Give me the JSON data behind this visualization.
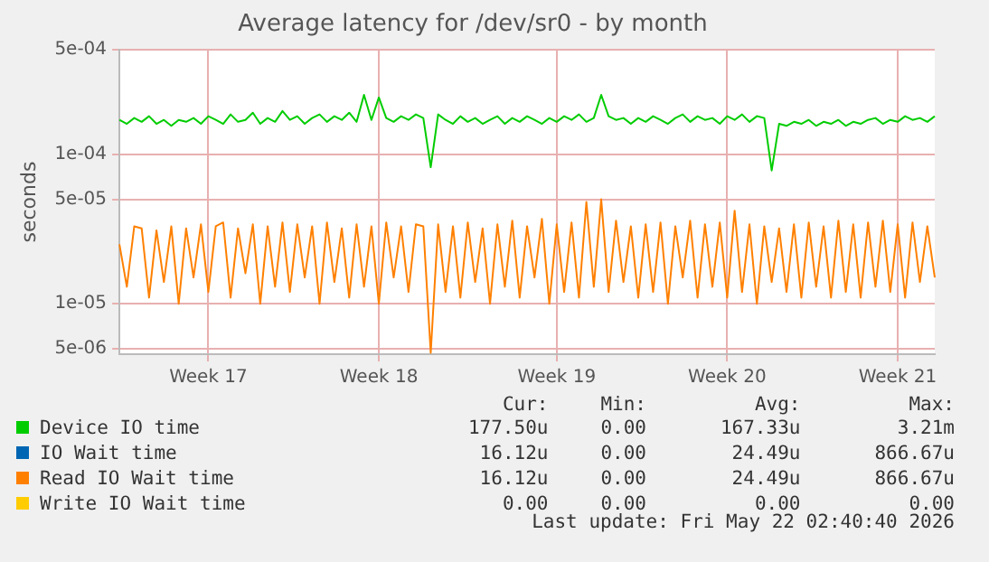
{
  "chart_data": {
    "type": "line",
    "title": "Average latency for /dev/sr0 - by month",
    "ylabel": "seconds",
    "log": "y",
    "grid": true,
    "legend": "bottom",
    "marker": "none",
    "line_style": "solid",
    "categories": [
      null,
      null,
      null,
      null,
      null,
      null,
      null,
      null,
      null,
      null,
      null,
      null,
      "Week 17",
      null,
      null,
      null,
      null,
      null,
      null,
      null,
      null,
      null,
      null,
      null,
      null,
      null,
      null,
      null,
      null,
      null,
      null,
      null,
      null,
      null,
      null,
      "Week 18",
      null,
      null,
      null,
      null,
      null,
      null,
      null,
      null,
      null,
      null,
      null,
      null,
      null,
      null,
      null,
      null,
      null,
      null,
      null,
      null,
      null,
      null,
      null,
      "Week 19",
      null,
      null,
      null,
      null,
      null,
      null,
      null,
      null,
      null,
      null,
      null,
      null,
      null,
      null,
      null,
      null,
      null,
      null,
      null,
      null,
      null,
      null,
      "Week 20",
      null,
      null,
      null,
      null,
      null,
      null,
      null,
      null,
      null,
      null,
      null,
      null,
      null,
      null,
      null,
      null,
      null,
      null,
      null,
      null,
      null,
      null,
      "Week 21",
      null,
      null,
      null,
      null,
      null
    ],
    "ylim": [
      4.6e-06,
      0.0005
    ],
    "yticks": [
      {
        "value": 5e-06,
        "label": "5e-06"
      },
      {
        "value": 1e-05,
        "label": "1e-05"
      },
      {
        "value": 5e-05,
        "label": "5e-05"
      },
      {
        "value": 0.0001,
        "label": "1e-04"
      },
      {
        "value": 0.0005,
        "label": "5e-04"
      }
    ],
    "series": [
      {
        "name": "Device IO time",
        "color": "#00cc00",
        "values": [
          0.00017,
          0.00016,
          0.000175,
          0.000165,
          0.00018,
          0.00016,
          0.00017,
          0.000155,
          0.00017,
          0.000165,
          0.000175,
          0.00016,
          0.00018,
          0.00017,
          0.00016,
          0.000185,
          0.000165,
          0.00017,
          0.00019,
          0.00016,
          0.000175,
          0.000165,
          0.000195,
          0.00017,
          0.00018,
          0.00016,
          0.000175,
          0.000185,
          0.000165,
          0.00018,
          0.00017,
          0.00019,
          0.000165,
          0.00025,
          0.00017,
          0.00024,
          0.000175,
          0.000165,
          0.00018,
          0.00017,
          0.000185,
          0.000175,
          8.2e-05,
          0.000185,
          0.00017,
          0.00016,
          0.00018,
          0.000165,
          0.000175,
          0.00016,
          0.00017,
          0.00018,
          0.00016,
          0.000175,
          0.000165,
          0.00018,
          0.00017,
          0.00016,
          0.000175,
          0.000165,
          0.00018,
          0.00017,
          0.000185,
          0.000165,
          0.000175,
          0.00025,
          0.00018,
          0.00017,
          0.000175,
          0.00016,
          0.000175,
          0.000165,
          0.00018,
          0.00017,
          0.00016,
          0.000175,
          0.000185,
          0.000165,
          0.00018,
          0.00017,
          0.000175,
          0.00016,
          0.00018,
          0.00017,
          0.000185,
          0.000165,
          0.00018,
          0.000175,
          7.8e-05,
          0.00016,
          0.000155,
          0.000165,
          0.00016,
          0.00017,
          0.000155,
          0.000165,
          0.00016,
          0.00017,
          0.000155,
          0.000165,
          0.00016,
          0.00017,
          0.000175,
          0.00016,
          0.00017,
          0.000165,
          0.00018,
          0.00017,
          0.000175,
          0.000165,
          0.00018
        ]
      },
      {
        "name": "IO Wait time",
        "color": "#0066b3",
        "values": [
          null,
          null,
          null,
          null,
          null,
          null,
          null,
          null,
          null,
          null,
          null,
          null,
          null,
          null,
          null,
          null,
          null,
          null,
          null,
          null,
          null,
          null,
          null,
          null,
          null,
          null,
          null,
          null,
          null,
          null,
          null,
          null,
          null,
          null,
          null,
          null,
          null,
          null,
          null,
          null,
          null,
          null,
          null,
          null,
          null,
          null,
          null,
          null,
          null,
          null,
          null,
          null,
          null,
          null,
          null,
          null,
          null,
          null,
          null,
          null,
          null,
          null,
          null,
          null,
          null,
          null,
          null,
          null,
          null,
          null,
          null,
          null,
          null,
          null,
          null,
          null,
          null,
          null,
          null,
          null,
          null,
          null,
          null,
          null,
          null,
          null,
          null,
          null,
          null,
          null,
          null,
          null,
          null,
          null,
          null,
          null,
          null,
          null,
          null,
          null,
          null,
          null,
          null,
          null,
          null,
          null,
          null,
          null,
          null,
          null,
          null
        ]
      },
      {
        "name": "Read IO Wait time",
        "color": "#ff8000",
        "values": [
          2.5e-05,
          1.3e-05,
          3.3e-05,
          3.2e-05,
          1.1e-05,
          3.1e-05,
          1.4e-05,
          3.3e-05,
          1e-05,
          3.2e-05,
          1.5e-05,
          3.4e-05,
          1.2e-05,
          3.3e-05,
          3.5e-05,
          1.1e-05,
          3.2e-05,
          1.6e-05,
          3.4e-05,
          1e-05,
          3.3e-05,
          1.3e-05,
          3.5e-05,
          1.2e-05,
          3.4e-05,
          1.5e-05,
          3.3e-05,
          1e-05,
          3.5e-05,
          1.4e-05,
          3.2e-05,
          1.1e-05,
          3.4e-05,
          1.3e-05,
          3.3e-05,
          1e-05,
          3.5e-05,
          1.5e-05,
          3.3e-05,
          1.2e-05,
          3.4e-05,
          3.3e-05,
          4.7e-06,
          3.4e-05,
          1.2e-05,
          3.3e-05,
          1.1e-05,
          3.5e-05,
          1.4e-05,
          3.2e-05,
          1e-05,
          3.4e-05,
          1.3e-05,
          3.6e-05,
          1.1e-05,
          3.3e-05,
          1.5e-05,
          3.7e-05,
          1e-05,
          3.4e-05,
          1.2e-05,
          3.5e-05,
          1.1e-05,
          4.8e-05,
          1.3e-05,
          5e-05,
          1.2e-05,
          3.6e-05,
          1.4e-05,
          3.3e-05,
          1.1e-05,
          3.4e-05,
          1.2e-05,
          3.5e-05,
          1e-05,
          3.3e-05,
          1.5e-05,
          3.6e-05,
          1.1e-05,
          3.4e-05,
          1.3e-05,
          3.5e-05,
          1.1e-05,
          4.2e-05,
          1.2e-05,
          3.4e-05,
          1e-05,
          3.3e-05,
          1.4e-05,
          3.2e-05,
          1.2e-05,
          3.4e-05,
          1.1e-05,
          3.5e-05,
          1.3e-05,
          3.3e-05,
          1.1e-05,
          3.6e-05,
          1.2e-05,
          3.4e-05,
          1.1e-05,
          3.5e-05,
          1.3e-05,
          3.6e-05,
          1.2e-05,
          3.4e-05,
          1.1e-05,
          3.5e-05,
          1.4e-05,
          3.3e-05,
          1.5e-05
        ]
      },
      {
        "name": "Write IO Wait time",
        "color": "#ffcc00",
        "values": [
          null,
          null,
          null,
          null,
          null,
          null,
          null,
          null,
          null,
          null,
          null,
          null,
          null,
          null,
          null,
          null,
          null,
          null,
          null,
          null,
          null,
          null,
          null,
          null,
          null,
          null,
          null,
          null,
          null,
          null,
          null,
          null,
          null,
          null,
          null,
          null,
          null,
          null,
          null,
          null,
          null,
          null,
          null,
          null,
          null,
          null,
          null,
          null,
          null,
          null,
          null,
          null,
          null,
          null,
          null,
          null,
          null,
          null,
          null,
          null,
          null,
          null,
          null,
          null,
          null,
          null,
          null,
          null,
          null,
          null,
          null,
          null,
          null,
          null,
          null,
          null,
          null,
          null,
          null,
          null,
          null,
          null,
          null,
          null,
          null,
          null,
          null,
          null,
          null,
          null,
          null,
          null,
          null,
          null,
          null,
          null,
          null,
          null,
          null,
          null,
          null,
          null,
          null,
          null,
          null,
          null,
          null,
          null,
          null,
          null,
          null
        ]
      }
    ],
    "annotations": [
      "Cur:",
      "Min:",
      "Avg:",
      "Max:",
      "177.50u",
      "0.00",
      "167.33u",
      "3.21m",
      "16.12u",
      "0.00",
      "24.49u",
      "866.67u",
      "16.12u",
      "0.00",
      "24.49u",
      "866.67u",
      "0.00",
      "0.00",
      "0.00",
      "0.00",
      "Last update: Fri May 22 02:40:40 2026"
    ]
  }
}
